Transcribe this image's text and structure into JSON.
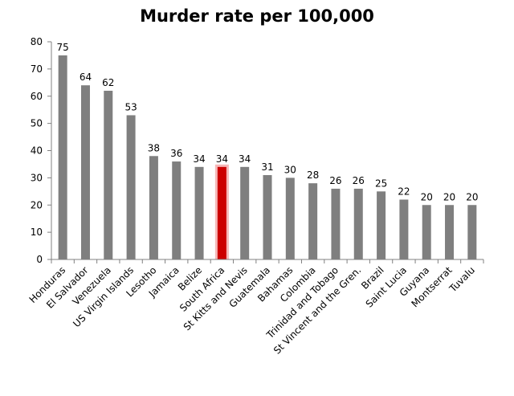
{
  "chart_data": {
    "type": "bar",
    "title": "Murder rate per 100,000",
    "xlabel": "",
    "ylabel": "",
    "ylim": [
      0,
      80
    ],
    "yticks": [
      0,
      10,
      20,
      30,
      40,
      50,
      60,
      70,
      80
    ],
    "grid": false,
    "legend": "none",
    "categories": [
      "Honduras",
      "El Salvador",
      "Venezuela",
      "US Virgin Islands",
      "Lesotho",
      "Jamaica",
      "Belize",
      "South Africa",
      "St Kitts and Nevis",
      "Guatemala",
      "Bahamas",
      "Colombia",
      "Trinidad and Tobago",
      "St Vincent and the Gren.",
      "Brazil",
      "Saint Lucia",
      "Guyana",
      "Montserrat",
      "Tuvalu"
    ],
    "values": [
      75,
      64,
      62,
      53,
      38,
      36,
      34,
      34,
      34,
      31,
      30,
      28,
      26,
      26,
      25,
      22,
      20,
      20,
      20
    ],
    "data_labels": [
      "75",
      "64",
      "62",
      "53",
      "38",
      "36",
      "34",
      "34",
      "34",
      "31",
      "30",
      "28",
      "26",
      "26",
      "25",
      "22",
      "20",
      "20",
      "20"
    ],
    "highlight_category": "South Africa",
    "colors": {
      "bar": "#7f7f7f",
      "highlight": "#cc0000",
      "highlight_glow": "#f4a6a6",
      "axis": "#808080"
    }
  }
}
